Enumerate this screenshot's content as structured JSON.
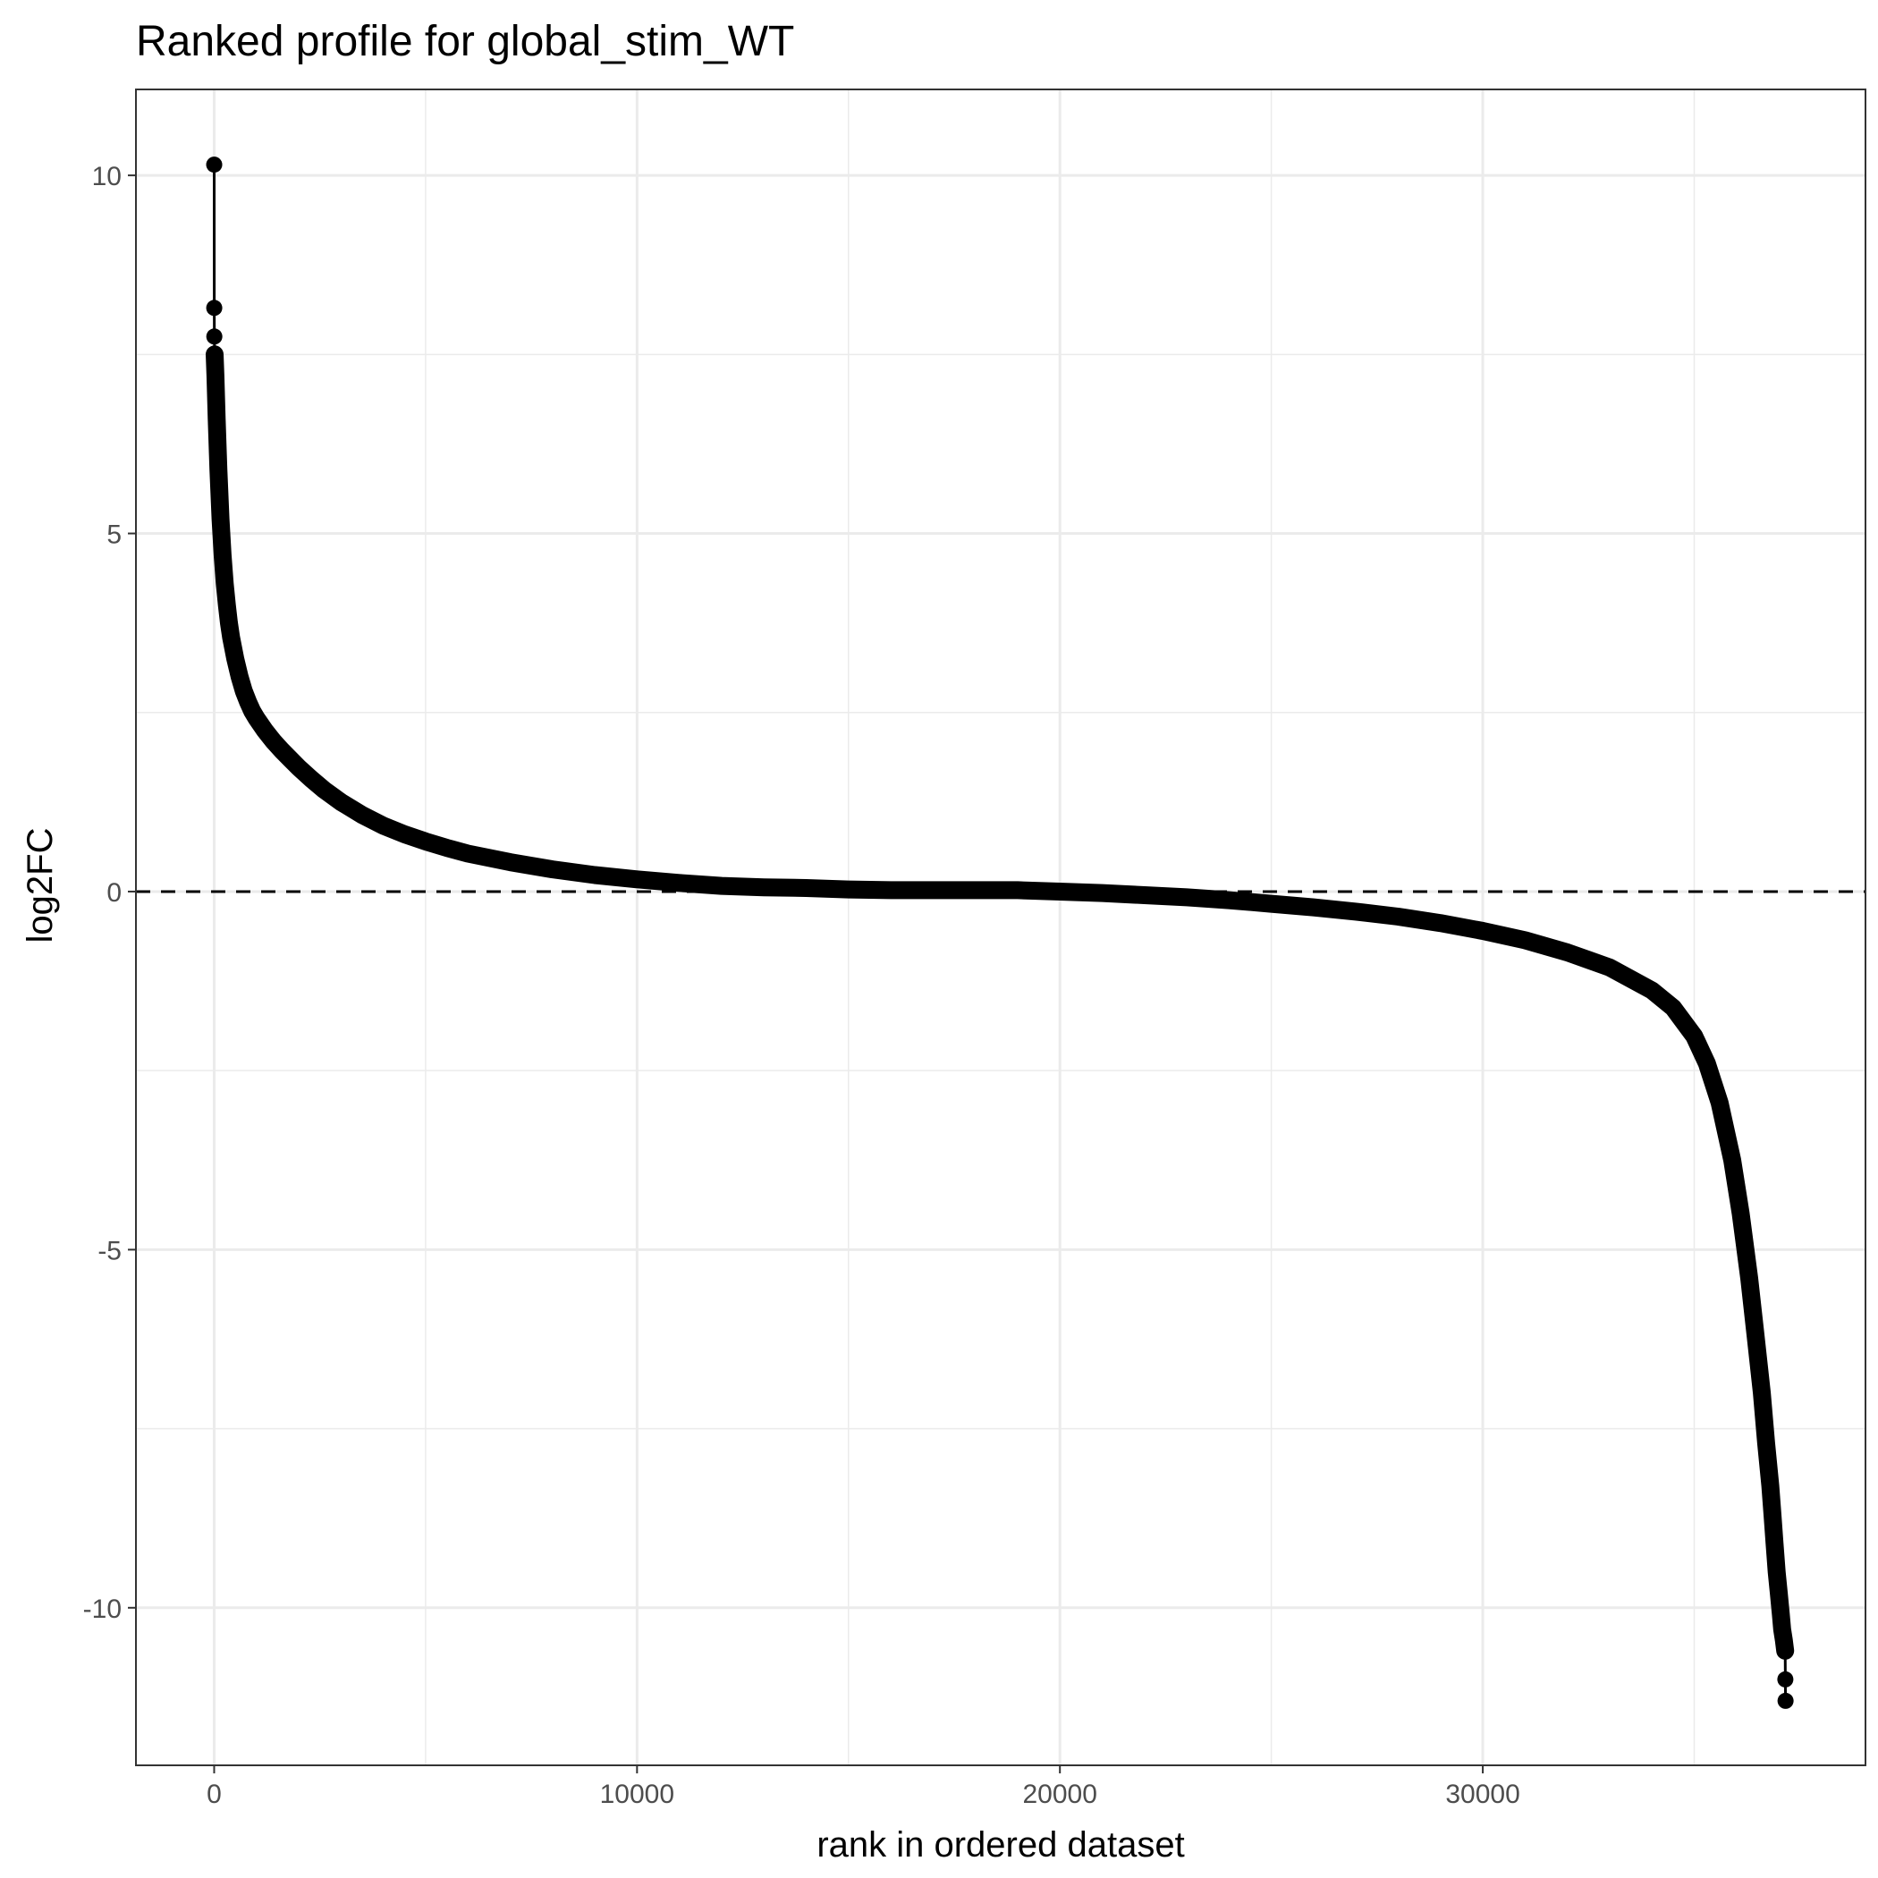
{
  "chart_data": {
    "type": "line",
    "title": "Ranked profile for global_stim_WT",
    "xlabel": "rank in ordered dataset",
    "ylabel": "log2FC",
    "xlim": [
      -1850,
      39050
    ],
    "ylim": [
      -12.2,
      11.2
    ],
    "x_ticks": [
      0,
      10000,
      20000,
      30000
    ],
    "x_tick_labels": [
      "0",
      "10000",
      "20000",
      "30000"
    ],
    "y_ticks": [
      -10,
      -5,
      0,
      5,
      10
    ],
    "y_tick_labels": [
      "-10",
      "-5",
      "0",
      "5",
      "10"
    ],
    "reference_line": {
      "y": 0,
      "style": "dashed"
    },
    "grid": true,
    "legend": "none",
    "colors": {
      "series": "#000000",
      "grid": "#ebebeb",
      "panel_border": "#333333"
    },
    "series": [
      {
        "x": [
          1,
          2,
          4,
          10,
          30,
          60,
          100,
          150,
          200,
          250,
          300,
          350,
          400,
          500,
          600,
          700,
          800,
          900,
          1000,
          1200,
          1400,
          1600,
          1800,
          2000,
          2300,
          2600,
          3000,
          3500,
          4000,
          4500,
          5000,
          5500,
          6000,
          7000,
          8000,
          9000,
          10000,
          11000,
          12000,
          13000,
          14000,
          15000,
          16000,
          17000,
          18000,
          19000,
          20000,
          21000,
          22000,
          23000,
          24000,
          25000,
          26000,
          27000,
          28000,
          29000,
          30000,
          31000,
          32000,
          33000,
          34000,
          34500,
          35000,
          35300,
          35600,
          35900,
          36100,
          36300,
          36450,
          36600,
          36700,
          36800,
          36850,
          36900,
          36950,
          37000,
          37050,
          37080,
          37120,
          37150,
          37155,
          37160
        ],
        "y": [
          10.15,
          8.15,
          7.75,
          7.5,
          7.2,
          6.6,
          5.9,
          5.2,
          4.7,
          4.3,
          4.0,
          3.75,
          3.55,
          3.25,
          3.0,
          2.8,
          2.65,
          2.52,
          2.42,
          2.25,
          2.1,
          1.97,
          1.85,
          1.73,
          1.57,
          1.42,
          1.25,
          1.07,
          0.92,
          0.8,
          0.7,
          0.61,
          0.53,
          0.41,
          0.31,
          0.23,
          0.17,
          0.12,
          0.08,
          0.06,
          0.05,
          0.03,
          0.02,
          0.02,
          0.02,
          0.02,
          0.0,
          -0.02,
          -0.05,
          -0.08,
          -0.12,
          -0.17,
          -0.22,
          -0.28,
          -0.35,
          -0.44,
          -0.55,
          -0.68,
          -0.85,
          -1.06,
          -1.38,
          -1.62,
          -2.02,
          -2.4,
          -2.95,
          -3.75,
          -4.5,
          -5.4,
          -6.2,
          -7.0,
          -7.7,
          -8.3,
          -8.7,
          -9.1,
          -9.5,
          -9.8,
          -10.1,
          -10.3,
          -10.45,
          -10.6,
          -11.0,
          -11.3
        ]
      }
    ]
  }
}
